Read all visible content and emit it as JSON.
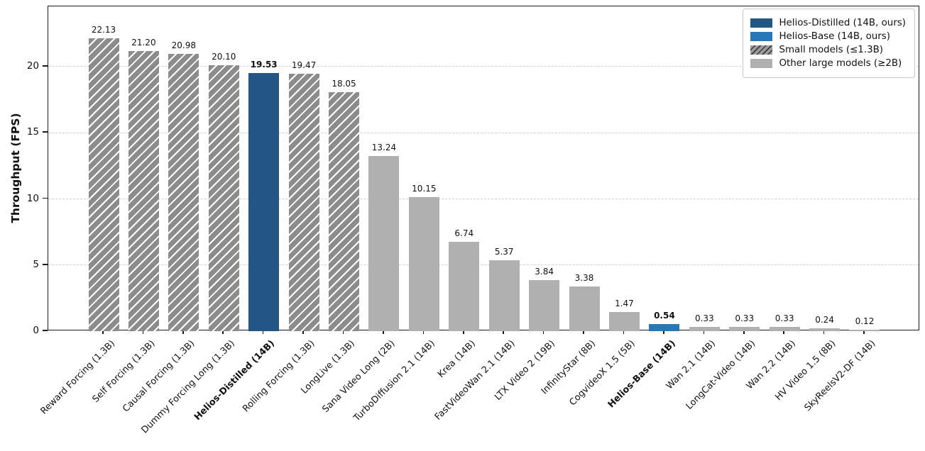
{
  "chart_data": {
    "type": "bar",
    "title": "",
    "xlabel": "",
    "ylabel": "Throughput (FPS)",
    "ylim": [
      0,
      24.56
    ],
    "yticks": [
      0,
      5,
      10,
      15,
      20
    ],
    "grid": "horizontal-dashed",
    "categories": [
      "Reward Forcing (1.3B)",
      "Self Forcing (1.3B)",
      "Causal Forcing (1.3B)",
      "Dummy Forcing Long (1.3B)",
      "Helios-Distilled (14B)",
      "Rolling Forcing (1.3B)",
      "LongLive (1.3B)",
      "Sana Video Long (2B)",
      "TurboDiffusion 2.1 (14B)",
      "Krea (14B)",
      "FastVideoWan 2.1 (14B)",
      "LTX Video 2 (19B)",
      "InfinityStar (8B)",
      "CogvideoX 1.5 (5B)",
      "Helios-Base (14B)",
      "Wan 2.1 (14B)",
      "LongCat-Video (14B)",
      "Wan 2.2 (14B)",
      "HV Video 1.5 (8B)",
      "SkyReelsV2-DF (14B)"
    ],
    "values": [
      22.13,
      21.2,
      20.98,
      20.1,
      19.53,
      19.47,
      18.05,
      13.24,
      10.15,
      6.74,
      5.37,
      3.84,
      3.38,
      1.47,
      0.54,
      0.33,
      0.33,
      0.33,
      0.24,
      0.12
    ],
    "value_labels": [
      "22.13",
      "21.20",
      "20.98",
      "20.10",
      "19.53",
      "19.47",
      "18.05",
      "13.24",
      "10.15",
      "6.74",
      "5.37",
      "3.84",
      "3.38",
      "1.47",
      "0.54",
      "0.33",
      "0.33",
      "0.33",
      "0.24",
      "0.12"
    ],
    "bar_styles": [
      "hatched",
      "hatched",
      "hatched",
      "hatched",
      "distilled",
      "hatched",
      "hatched",
      "plain",
      "plain",
      "plain",
      "plain",
      "plain",
      "plain",
      "plain",
      "base",
      "plain",
      "plain",
      "plain",
      "plain",
      "plain"
    ],
    "emphasis_indices": [
      4,
      14
    ],
    "legend": {
      "position": "upper right",
      "entries": [
        {
          "label": "Helios-Distilled (14B, ours)",
          "style": "distilled"
        },
        {
          "label": "Helios-Base (14B, ours)",
          "style": "base"
        },
        {
          "label": "Small models (≤1.3B)",
          "style": "hatched"
        },
        {
          "label": "Other large models (≥2B)",
          "style": "plain"
        }
      ]
    },
    "colors": {
      "distilled": "#235685",
      "base": "#2878b8",
      "hatched_fill": "#8c8c8c",
      "hatch_line": "#ffffff",
      "legend_hatch_fill": "#9c9c9c",
      "legend_hatch_line": "#3a3a3a",
      "plain": "#b0b0b0",
      "spine": "#1a1a1a",
      "grid": "#cfcfcf",
      "text": "#111111"
    }
  }
}
